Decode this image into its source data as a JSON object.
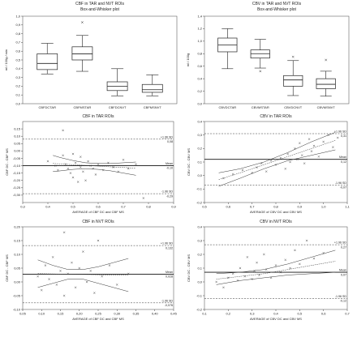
{
  "chart_data": [
    {
      "id": "p1",
      "type": "box",
      "title": "CBF in TAR and NVT ROIs",
      "subtitle": "Box-and-Whisker plot",
      "ylabel": "ml / 100g / min",
      "xlabel": "",
      "ylim": [
        0,
        1.0
      ],
      "yticks": [
        0,
        0.1,
        0.2,
        0.3,
        0.4,
        0.5,
        0.6,
        0.7,
        0.8,
        0.9,
        1.0
      ],
      "categories": [
        "CBFDCTAR",
        "CBFMSTAR",
        "CBFDCNVT",
        "CBFMSNVT"
      ],
      "boxes": [
        {
          "min": 0.34,
          "q1": 0.39,
          "median": 0.46,
          "q3": 0.57,
          "max": 0.69,
          "outliers": []
        },
        {
          "min": 0.37,
          "q1": 0.5,
          "median": 0.57,
          "q3": 0.65,
          "max": 0.78,
          "outliers": [
            0.93
          ]
        },
        {
          "min": 0.09,
          "q1": 0.15,
          "median": 0.2,
          "q3": 0.25,
          "max": 0.4,
          "outliers": []
        },
        {
          "min": 0.09,
          "q1": 0.13,
          "median": 0.16,
          "q3": 0.22,
          "max": 0.33,
          "outliers": []
        }
      ]
    },
    {
      "id": "p2",
      "type": "box",
      "title": "CBV in TAR and NVT ROIs",
      "subtitle": "Box-and-Whisker plot",
      "ylabel": "ml / 100g",
      "xlabel": "",
      "ylim": [
        0,
        1.4
      ],
      "yticks": [
        0,
        0.2,
        0.4,
        0.6,
        0.8,
        1.0,
        1.2,
        1.4
      ],
      "categories": [
        "CBVDCTAR",
        "CBVMSTAR",
        "CBVDCNVT",
        "CBVMSNVT"
      ],
      "boxes": [
        {
          "min": 0.56,
          "q1": 0.83,
          "median": 0.94,
          "q3": 1.05,
          "max": 1.2,
          "outliers": []
        },
        {
          "min": 0.57,
          "q1": 0.73,
          "median": 0.8,
          "q3": 0.86,
          "max": 1.03,
          "outliers": [
            0.52
          ]
        },
        {
          "min": 0.13,
          "q1": 0.28,
          "median": 0.38,
          "q3": 0.45,
          "max": 0.69,
          "outliers": [
            0.75
          ]
        },
        {
          "min": 0.12,
          "q1": 0.24,
          "median": 0.31,
          "q3": 0.4,
          "max": 0.52,
          "outliers": [
            0.7
          ]
        }
      ]
    },
    {
      "id": "p3",
      "type": "scatter",
      "title": "CBF in TAR ROIs",
      "xlabel": "AVERAGE of CBF DC and CBF MS",
      "ylabel": "CBF DC - CBF MS",
      "xlim": [
        0.3,
        0.9
      ],
      "ylim": [
        -0.35,
        0.2
      ],
      "xticks": [
        0.3,
        0.4,
        0.5,
        0.6,
        0.7,
        0.8,
        0.9
      ],
      "xtick_labels": [
        "0,3",
        "0,4",
        "0,5",
        "0,6",
        "0,7",
        "0,8",
        "0,9"
      ],
      "yticks": [
        -0.3,
        -0.25,
        -0.2,
        -0.15,
        -0.1,
        -0.05,
        0,
        0.05,
        0.1,
        0.15
      ],
      "ytick_labels": [
        "-0,30",
        "-0,25",
        "-0,20",
        "-0,15",
        "-0,10",
        "-0,05",
        "0,00",
        "0,05",
        "0,10",
        "0,15"
      ],
      "mean": -0.1,
      "upper_loa": 0.08,
      "lower_loa": -0.29,
      "labels": {
        "upper": "+1.96 SD",
        "upper_value": "0,08",
        "mean": "Mean",
        "mean_value": "-0,10",
        "lower": "-1.96 SD",
        "lower_value": "-0,29"
      },
      "regression": {
        "x": [
          0.42,
          0.45,
          0.5,
          0.55,
          0.6,
          0.65,
          0.7,
          0.75
        ],
        "fit": [
          -0.085,
          -0.088,
          -0.093,
          -0.098,
          -0.103,
          -0.108,
          -0.112,
          -0.117
        ],
        "upper": [
          -0.03,
          -0.045,
          -0.065,
          -0.08,
          -0.085,
          -0.085,
          -0.08,
          -0.075
        ],
        "lower": [
          -0.14,
          -0.135,
          -0.125,
          -0.12,
          -0.125,
          -0.135,
          -0.15,
          -0.165
        ]
      },
      "points": [
        {
          "x": 0.4,
          "y": -0.07
        },
        {
          "x": 0.43,
          "y": -0.1
        },
        {
          "x": 0.44,
          "y": -0.13
        },
        {
          "x": 0.46,
          "y": 0.14
        },
        {
          "x": 0.46,
          "y": -0.03
        },
        {
          "x": 0.47,
          "y": -0.09
        },
        {
          "x": 0.48,
          "y": -0.12
        },
        {
          "x": 0.49,
          "y": -0.15
        },
        {
          "x": 0.5,
          "y": -0.02
        },
        {
          "x": 0.5,
          "y": -0.18
        },
        {
          "x": 0.51,
          "y": -0.08
        },
        {
          "x": 0.52,
          "y": -0.21
        },
        {
          "x": 0.53,
          "y": -0.04
        },
        {
          "x": 0.53,
          "y": -0.11
        },
        {
          "x": 0.54,
          "y": -0.14
        },
        {
          "x": 0.55,
          "y": -0.2
        },
        {
          "x": 0.56,
          "y": -0.07
        },
        {
          "x": 0.57,
          "y": -0.1
        },
        {
          "x": 0.58,
          "y": -0.12
        },
        {
          "x": 0.59,
          "y": -0.16
        },
        {
          "x": 0.6,
          "y": -0.09
        },
        {
          "x": 0.62,
          "y": -0.13
        },
        {
          "x": 0.64,
          "y": -0.08
        },
        {
          "x": 0.66,
          "y": -0.11
        },
        {
          "x": 0.68,
          "y": -0.14
        },
        {
          "x": 0.7,
          "y": -0.06
        },
        {
          "x": 0.72,
          "y": -0.12
        },
        {
          "x": 0.75,
          "y": -0.09
        },
        {
          "x": 0.78,
          "y": -0.32
        }
      ]
    },
    {
      "id": "p4",
      "type": "scatter",
      "title": "CBV in TAR ROIs",
      "xlabel": "AVERAGE of CBV DC and CBV MS",
      "ylabel": "CBV DC - CBV MS",
      "xlim": [
        0.5,
        1.1
      ],
      "ylim": [
        -0.2,
        0.4
      ],
      "xticks": [
        0.5,
        0.6,
        0.7,
        0.8,
        0.9,
        1.0,
        1.1
      ],
      "xtick_labels": [
        "0,5",
        "0,6",
        "0,7",
        "0,8",
        "0,9",
        "1,0",
        "1,1"
      ],
      "yticks": [
        -0.2,
        -0.1,
        0,
        0.1,
        0.2,
        0.3,
        0.4
      ],
      "ytick_labels": [
        "-0,2",
        "-0,1",
        "0,0",
        "0,1",
        "0,2",
        "0,3",
        "0,4"
      ],
      "mean": 0.12,
      "upper_loa": 0.31,
      "lower_loa": -0.07,
      "labels": {
        "upper": "+1.96 SD",
        "upper_value": "0,31",
        "mean": "Mean",
        "mean_value": "0,12",
        "lower": "-1.96 SD",
        "lower_value": "-0,07"
      },
      "regression": {
        "x": [
          0.56,
          0.65,
          0.75,
          0.85,
          0.95,
          1.05
        ],
        "fit": [
          -0.03,
          0.02,
          0.08,
          0.14,
          0.2,
          0.26
        ],
        "upper": [
          0.02,
          0.05,
          0.1,
          0.17,
          0.25,
          0.32
        ],
        "lower": [
          -0.08,
          -0.02,
          0.05,
          0.11,
          0.15,
          0.19
        ]
      },
      "points": [
        {
          "x": 0.58,
          "y": -0.02
        },
        {
          "x": 0.62,
          "y": 0.01
        },
        {
          "x": 0.66,
          "y": 0.04
        },
        {
          "x": 0.7,
          "y": 0.02
        },
        {
          "x": 0.72,
          "y": 0.06
        },
        {
          "x": 0.74,
          "y": 0.09
        },
        {
          "x": 0.76,
          "y": 0.03
        },
        {
          "x": 0.78,
          "y": 0.11
        },
        {
          "x": 0.8,
          "y": 0.08
        },
        {
          "x": 0.82,
          "y": 0.13
        },
        {
          "x": 0.84,
          "y": 0.05
        },
        {
          "x": 0.85,
          "y": 0.16
        },
        {
          "x": 0.86,
          "y": 0.1
        },
        {
          "x": 0.88,
          "y": 0.2
        },
        {
          "x": 0.89,
          "y": 0.12
        },
        {
          "x": 0.9,
          "y": 0.24
        },
        {
          "x": 0.91,
          "y": 0.15
        },
        {
          "x": 0.92,
          "y": 0.09
        },
        {
          "x": 0.94,
          "y": 0.27
        },
        {
          "x": 0.95,
          "y": 0.18
        },
        {
          "x": 0.96,
          "y": 0.22
        },
        {
          "x": 0.98,
          "y": 0.14
        },
        {
          "x": 1.0,
          "y": 0.25
        },
        {
          "x": 1.02,
          "y": 0.3
        },
        {
          "x": 1.04,
          "y": 0.21
        },
        {
          "x": 1.06,
          "y": 0.28
        }
      ]
    },
    {
      "id": "p5",
      "type": "scatter",
      "title": "CBF in NVT ROIs",
      "xlabel": "AVERAGE of CBF DC and CBF MS",
      "ylabel": "CBF DC - CBF MS",
      "xlim": [
        0.05,
        0.45
      ],
      "ylim": [
        -0.1,
        0.2
      ],
      "xticks": [
        0.05,
        0.1,
        0.15,
        0.2,
        0.25,
        0.3,
        0.35,
        0.4,
        0.45
      ],
      "xtick_labels": [
        "0,05",
        "0,10",
        "0,15",
        "0,20",
        "0,25",
        "0,30",
        "0,35",
        "0,40",
        "0,45"
      ],
      "yticks": [
        -0.1,
        -0.05,
        0,
        0.05,
        0.1,
        0.15,
        0.2
      ],
      "ytick_labels": [
        "-0,10",
        "-0,05",
        "0,00",
        "0,05",
        "0,10",
        "0,15",
        "0,20"
      ],
      "mean": 0.028,
      "upper_loa": 0.132,
      "lower_loa": -0.076,
      "labels": {
        "upper": "+1.96 SD",
        "upper_value": "0,132",
        "mean": "Mean",
        "mean_value": "0,028",
        "lower": "-1.96 SD",
        "lower_value": "-0,076"
      },
      "regression": {
        "x": [
          0.09,
          0.13,
          0.17,
          0.21,
          0.25,
          0.29,
          0.33
        ],
        "fit": [
          0.03,
          0.029,
          0.028,
          0.027,
          0.026,
          0.025,
          0.024
        ],
        "upper": [
          0.08,
          0.06,
          0.045,
          0.045,
          0.055,
          0.07,
          0.085
        ],
        "lower": [
          -0.02,
          -0.005,
          0.01,
          0.01,
          -0.005,
          -0.02,
          -0.035
        ]
      },
      "points": [
        {
          "x": 0.09,
          "y": 0.02
        },
        {
          "x": 0.1,
          "y": -0.03
        },
        {
          "x": 0.11,
          "y": 0.06
        },
        {
          "x": 0.12,
          "y": 0.01
        },
        {
          "x": 0.13,
          "y": 0.09
        },
        {
          "x": 0.14,
          "y": -0.01
        },
        {
          "x": 0.15,
          "y": 0.04
        },
        {
          "x": 0.16,
          "y": 0.18
        },
        {
          "x": 0.16,
          "y": -0.05
        },
        {
          "x": 0.17,
          "y": 0.03
        },
        {
          "x": 0.18,
          "y": 0.07
        },
        {
          "x": 0.19,
          "y": -0.02
        },
        {
          "x": 0.2,
          "y": 0.05
        },
        {
          "x": 0.21,
          "y": 0.11
        },
        {
          "x": 0.22,
          "y": 0.0
        },
        {
          "x": 0.23,
          "y": 0.04
        },
        {
          "x": 0.24,
          "y": -0.04
        },
        {
          "x": 0.25,
          "y": 0.15
        },
        {
          "x": 0.26,
          "y": 0.02
        },
        {
          "x": 0.28,
          "y": 0.06
        },
        {
          "x": 0.3,
          "y": -0.01
        },
        {
          "x": 0.33,
          "y": 0.03
        }
      ]
    },
    {
      "id": "p6",
      "type": "scatter",
      "title": "CBV in NVT ROIs",
      "xlabel": "AVERAGE of CBV DC and CBV MS",
      "ylabel": "CBV DC - CBV MS",
      "xlim": [
        0.1,
        0.7
      ],
      "ylim": [
        -0.2,
        0.4
      ],
      "xticks": [
        0.1,
        0.2,
        0.3,
        0.4,
        0.5,
        0.6,
        0.7
      ],
      "xtick_labels": [
        "0,1",
        "0,2",
        "0,3",
        "0,4",
        "0,5",
        "0,6",
        "0,7"
      ],
      "yticks": [
        -0.2,
        -0.1,
        0,
        0.1,
        0.2,
        0.3,
        0.4
      ],
      "ytick_labels": [
        "-0,2",
        "-0,1",
        "0,0",
        "0,1",
        "0,2",
        "0,3",
        "0,4"
      ],
      "mean": 0.07,
      "upper_loa": 0.27,
      "lower_loa": -0.12,
      "labels": {
        "upper": "+1.96 SD",
        "upper_value": "0,27",
        "mean": "Mean",
        "mean_value": "0,07",
        "lower": "-1.96 SD",
        "lower_value": "-0,12"
      },
      "regression": {
        "x": [
          0.15,
          0.25,
          0.35,
          0.45,
          0.55,
          0.65
        ],
        "fit": [
          0.02,
          0.04,
          0.06,
          0.09,
          0.12,
          0.15
        ],
        "upper": [
          0.06,
          0.07,
          0.09,
          0.13,
          0.18,
          0.23
        ],
        "lower": [
          -0.02,
          0.01,
          0.03,
          0.05,
          0.06,
          0.07
        ]
      },
      "points": [
        {
          "x": 0.15,
          "y": 0.0
        },
        {
          "x": 0.18,
          "y": -0.04
        },
        {
          "x": 0.2,
          "y": 0.03
        },
        {
          "x": 0.22,
          "y": 0.06
        },
        {
          "x": 0.24,
          "y": 0.01
        },
        {
          "x": 0.25,
          "y": 0.1
        },
        {
          "x": 0.27,
          "y": 0.04
        },
        {
          "x": 0.28,
          "y": 0.18
        },
        {
          "x": 0.3,
          "y": 0.02
        },
        {
          "x": 0.31,
          "y": 0.08
        },
        {
          "x": 0.32,
          "y": 0.14
        },
        {
          "x": 0.33,
          "y": 0.05
        },
        {
          "x": 0.35,
          "y": 0.2
        },
        {
          "x": 0.36,
          "y": 0.09
        },
        {
          "x": 0.38,
          "y": 0.03
        },
        {
          "x": 0.4,
          "y": 0.12
        },
        {
          "x": 0.42,
          "y": 0.07
        },
        {
          "x": 0.44,
          "y": 0.16
        },
        {
          "x": 0.46,
          "y": 0.1
        },
        {
          "x": 0.48,
          "y": 0.23
        },
        {
          "x": 0.5,
          "y": 0.13
        },
        {
          "x": 0.53,
          "y": 0.3
        },
        {
          "x": 0.56,
          "y": 0.17
        },
        {
          "x": 0.6,
          "y": 0.21
        }
      ]
    }
  ]
}
